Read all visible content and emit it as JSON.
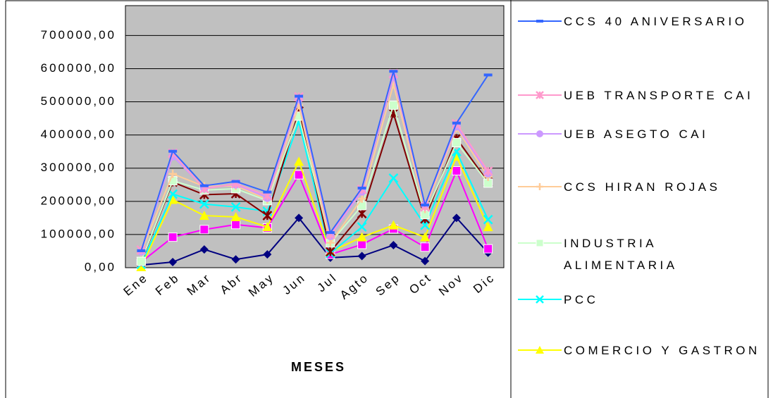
{
  "chart_data": {
    "type": "line",
    "x_label": "MESES",
    "categories": [
      "Ene",
      "Feb",
      "Mar",
      "Abr",
      "May",
      "Jun",
      "Jul",
      "Agto",
      "Sep",
      "Oct",
      "Nov",
      "Dic"
    ],
    "ylim": [
      0,
      790000
    ],
    "yticks": [
      {
        "value": 0,
        "label": "0,00"
      },
      {
        "value": 100000,
        "label": "100000,00"
      },
      {
        "value": 200000,
        "label": "200000,00"
      },
      {
        "value": 300000,
        "label": "300000,00"
      },
      {
        "value": 400000,
        "label": "400000,00"
      },
      {
        "value": 500000,
        "label": "500000,00"
      },
      {
        "value": 600000,
        "label": "600000,00"
      },
      {
        "value": 700000,
        "label": "700000,00"
      }
    ],
    "grid": true,
    "plot_background": "#c0c0c0",
    "series": [
      {
        "color": "#000080",
        "marker": "diamond",
        "values": [
          8000,
          17000,
          55000,
          25000,
          40000,
          150000,
          30000,
          35000,
          68000,
          20000,
          150000,
          45000
        ]
      },
      {
        "color": "#ff00ff",
        "marker": "square",
        "values": [
          17000,
          92000,
          115000,
          130000,
          120000,
          280000,
          40000,
          70000,
          117000,
          62000,
          292000,
          57000
        ]
      },
      {
        "name": "COMERCIO Y GASTRON",
        "color": "#ffff00",
        "marker": "triangle",
        "values": [
          2000,
          205000,
          157000,
          153000,
          123000,
          320000,
          48000,
          92000,
          128000,
          92000,
          335000,
          123000
        ]
      },
      {
        "name": "PCC",
        "color": "#00ffff",
        "marker": "x",
        "values": [
          10000,
          222000,
          192000,
          183000,
          170000,
          440000,
          43000,
          123000,
          270000,
          128000,
          350000,
          145000
        ]
      },
      {
        "color": "#800000",
        "marker": "star",
        "values": [
          17000,
          258000,
          220000,
          223000,
          157000,
          472000,
          48000,
          163000,
          465000,
          147000,
          390000,
          258000
        ]
      },
      {
        "name": "INDUSTRIA ALIMENTARIA",
        "color": "#ccffcc",
        "marker": "square",
        "values": [
          19000,
          262000,
          234000,
          238000,
          202000,
          457000,
          75000,
          187000,
          490000,
          160000,
          377000,
          255000
        ]
      },
      {
        "name": "CCS HIRAN ROJAS",
        "color": "#ffcc99",
        "marker": "plus",
        "values": [
          47000,
          283000,
          245000,
          247000,
          206000,
          490000,
          75000,
          208000,
          553000,
          177000,
          421000,
          274000
        ]
      },
      {
        "name": "UEB ASEGTO CAI",
        "color": "#cc99ff",
        "marker": "circle",
        "values": [
          49000,
          336000,
          240000,
          251000,
          211000,
          509000,
          96000,
          230000,
          575000,
          189000,
          426000,
          285000
        ]
      },
      {
        "name": "UEB TRANSPORTE CAI",
        "color": "#ff99cc",
        "marker": "star",
        "values": [
          53000,
          345000,
          238000,
          253000,
          217000,
          515000,
          100000,
          236000,
          585000,
          183000,
          434000,
          291000
        ]
      },
      {
        "name": "CCS 40 ANIVERSARIO",
        "color": "#3366ff",
        "marker": "dash",
        "values": [
          51000,
          351000,
          247000,
          260000,
          228000,
          517000,
          106000,
          240000,
          592000,
          189000,
          436000,
          581000
        ]
      }
    ]
  }
}
